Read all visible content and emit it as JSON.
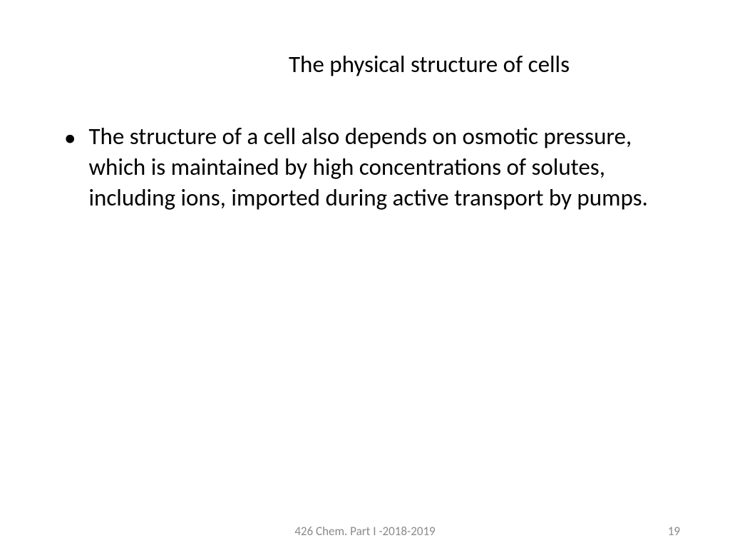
{
  "slide": {
    "title": "The physical structure of cells",
    "bullet_text": "The structure of a cell also depends on osmotic pressure, which is maintained by high concentrations of solutes, including ions, imported during active transport by pumps.",
    "footer_center": "426 Chem. Part I -2018-2019",
    "page_number": "19"
  },
  "styling": {
    "background_color": "#ffffff",
    "title_color": "#000000",
    "title_fontsize": 33,
    "body_color": "#000000",
    "body_fontsize": 33,
    "footer_color": "#8a8a8a",
    "footer_fontsize": 17,
    "font_family": "Calibri"
  }
}
